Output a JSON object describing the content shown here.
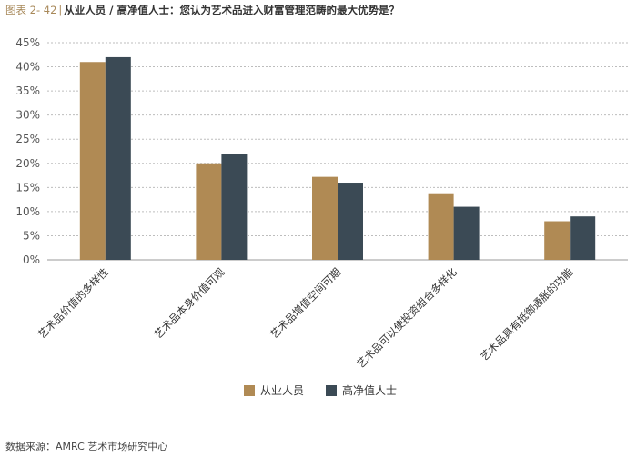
{
  "header": {
    "figure_label": "图表 2- 42",
    "separator": "|",
    "title": "从业人员 / 高净值人士：您认为艺术品进入财富管理范畴的最大优势是？"
  },
  "source_note": "数据来源：AMRC 艺术市场研究中心",
  "chart_data": {
    "type": "bar",
    "title": "从业人员 / 高净值人士：您认为艺术品进入财富管理范畴的最大优势是？",
    "categories": [
      "艺术品价值的多样性",
      "艺术品本身价值可观",
      "艺术品增值空间可期",
      "艺术品可以使投资组合多样化",
      "艺术品具有抵御通胀的功能"
    ],
    "series": [
      {
        "name": "从业人员",
        "color": "#b08a54",
        "values": [
          41,
          20,
          17.2,
          13.8,
          8
        ]
      },
      {
        "name": "高净值人士",
        "color": "#3b4a55",
        "values": [
          42,
          22,
          16,
          11,
          9
        ]
      }
    ],
    "yticks": [
      "0%",
      "5%",
      "10%",
      "15%",
      "20%",
      "25%",
      "30%",
      "35%",
      "40%",
      "45%"
    ],
    "ylim": [
      0,
      45
    ],
    "grid": true,
    "legend_position": "bottom-center"
  }
}
